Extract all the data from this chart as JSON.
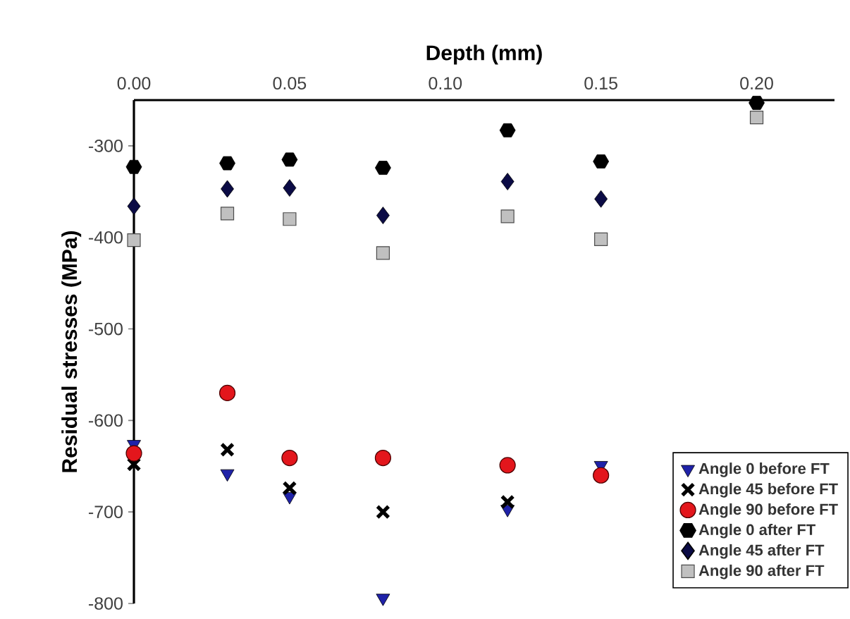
{
  "chart_data": {
    "type": "scatter",
    "xlabel": "Depth (mm)",
    "ylabel": "Residual stresses (MPa)",
    "x": [
      0,
      0.03,
      0.05,
      0.08,
      0.12,
      0.15,
      0.2
    ],
    "xlim": [
      0,
      0.225
    ],
    "ylim": [
      -800,
      -250
    ],
    "xticks": [
      {
        "value": 0,
        "label": "0.00"
      },
      0.05,
      {
        "value": 0.1,
        "label": "0.10"
      },
      0.15,
      {
        "value": 0.2,
        "label": "0.20"
      }
    ],
    "yticks": [
      -300,
      -400,
      -500,
      -600,
      -700,
      -800
    ],
    "grid": false,
    "legend": "bottom right",
    "series": [
      {
        "name": "Angle 0 before FT",
        "color": "#1f22a8",
        "marker": "triangle",
        "values": [
          -626,
          -658,
          -683,
          -794,
          -697,
          -649,
          null
        ]
      },
      {
        "name": "Angle 45 before FT",
        "color": "#000000",
        "marker": "cross",
        "values": [
          -648,
          -632,
          -674,
          -700,
          -689,
          null,
          null
        ]
      },
      {
        "name": "Angle 90 before FT",
        "color": "#e3161c",
        "marker": "circle",
        "values": [
          -636,
          -570,
          -641,
          -641,
          -649,
          -660,
          null
        ]
      },
      {
        "name": "Angle 0 after FT",
        "color": "#000000",
        "values": [
          -323,
          -319,
          -315,
          -324,
          -283,
          -317,
          -253
        ]
      },
      {
        "name": "Angle 45 after FT",
        "color": "#0b0b45",
        "marker": "diamond",
        "values": [
          -366,
          -347,
          -346,
          -376,
          -339,
          -358,
          null
        ]
      },
      {
        "name": "Angle 90 after FT",
        "color": "#c0c0c0",
        "marker": "square",
        "values": [
          -403,
          -374,
          -380,
          -417,
          -377,
          -402,
          -269
        ]
      }
    ]
  }
}
